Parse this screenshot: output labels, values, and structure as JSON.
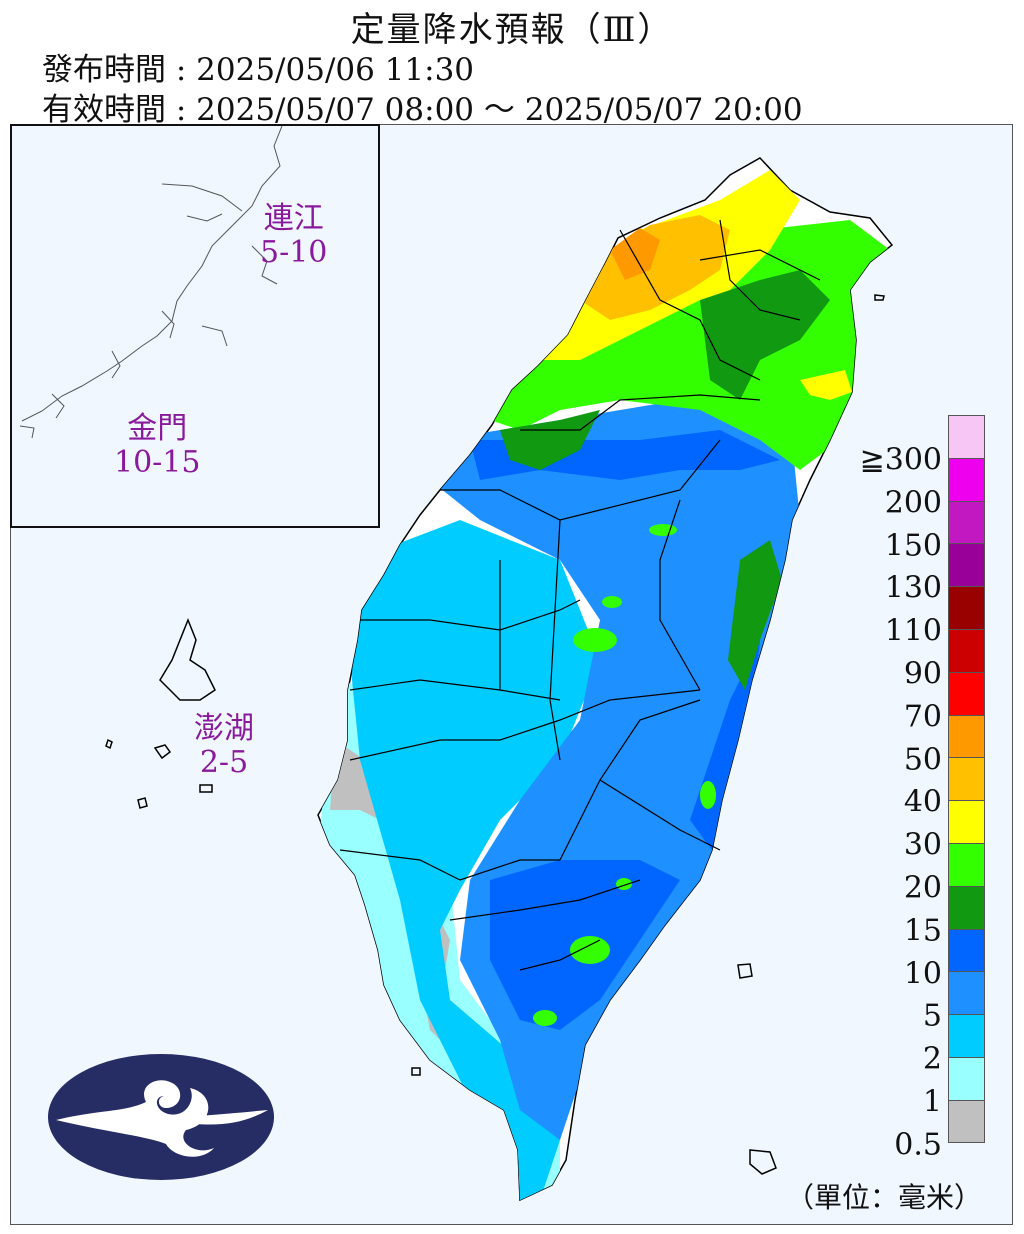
{
  "header": {
    "title": "定量降水預報（Ⅲ）",
    "issue_label": "發布時間 : ",
    "issue_time": "2025/05/06 11:30",
    "valid_label": "有效時間 : ",
    "valid_time": "2025/05/07 08:00 ～ 2025/05/07 20:00"
  },
  "islands": [
    {
      "name": "連江",
      "range": "5-10"
    },
    {
      "name": "金門",
      "range": "10-15"
    },
    {
      "name": "澎湖",
      "range": "2-5"
    }
  ],
  "legend": {
    "ticks": [
      "≧300",
      "200",
      "150",
      "130",
      "110",
      "90",
      "70",
      "50",
      "40",
      "30",
      "20",
      "15",
      "10",
      "5",
      "2",
      "1",
      "0.5"
    ],
    "colors": [
      "#f8c6f4",
      "#ee00ee",
      "#c218c2",
      "#990099",
      "#990000",
      "#cc0000",
      "#ff0000",
      "#ff9900",
      "#ffc000",
      "#ffff00",
      "#33ff00",
      "#119911",
      "#0066ff",
      "#1e90ff",
      "#00ccff",
      "#99ffff",
      "#c0c0c0"
    ],
    "unit": "（單位：毫米）"
  },
  "map_colors": {
    "background": "#f0f7ff",
    "land": "#ffffff",
    "border": "#000000"
  },
  "logo": {
    "icon": "cwa-cloud-logo-icon",
    "color": "#262c64"
  }
}
